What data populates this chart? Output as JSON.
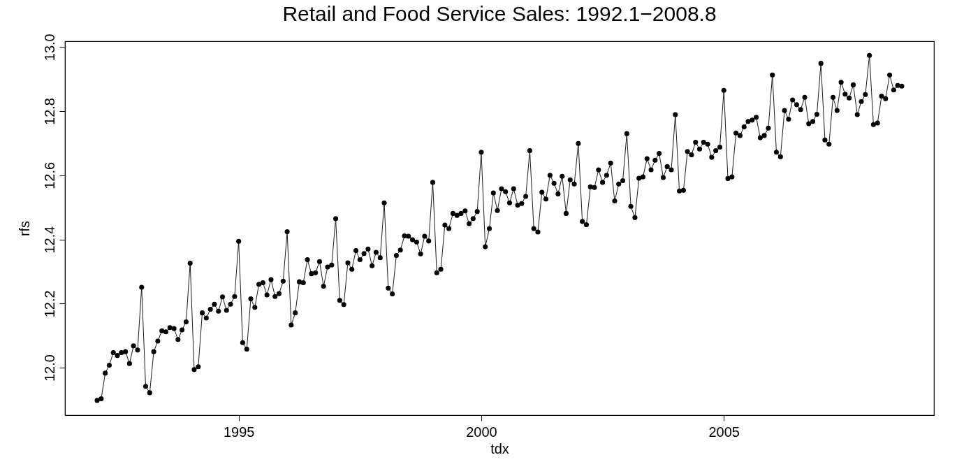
{
  "chart_data": {
    "type": "line",
    "title": "Retail and Food Service Sales: 1992.1−2008.8",
    "xlabel": "tdx",
    "ylabel": "rfs",
    "xlim": [
      1991.42,
      2009.33
    ],
    "xticks": [
      1995,
      2000,
      2005
    ],
    "ylim": [
      11.852,
      13.018
    ],
    "yticks": [
      {
        "value": 12,
        "label": "12.0"
      },
      12.2,
      12.4,
      12.6,
      12.8,
      {
        "value": 13,
        "label": "13.0"
      }
    ],
    "grid": false,
    "legend": false,
    "marker": "circle",
    "x": [
      1992.083,
      1992.167,
      1992.25,
      1992.333,
      1992.417,
      1992.5,
      1992.583,
      1992.667,
      1992.75,
      1992.833,
      1992.917,
      1993.0,
      1993.083,
      1993.167,
      1993.25,
      1993.333,
      1993.417,
      1993.5,
      1993.583,
      1993.667,
      1993.75,
      1993.833,
      1993.917,
      1994.0,
      1994.083,
      1994.167,
      1994.25,
      1994.333,
      1994.417,
      1994.5,
      1994.583,
      1994.667,
      1994.75,
      1994.833,
      1994.917,
      1995.0,
      1995.083,
      1995.167,
      1995.25,
      1995.333,
      1995.417,
      1995.5,
      1995.583,
      1995.667,
      1995.75,
      1995.833,
      1995.917,
      1996.0,
      1996.083,
      1996.167,
      1996.25,
      1996.333,
      1996.417,
      1996.5,
      1996.583,
      1996.667,
      1996.75,
      1996.833,
      1996.917,
      1997.0,
      1997.083,
      1997.167,
      1997.25,
      1997.333,
      1997.417,
      1997.5,
      1997.583,
      1997.667,
      1997.75,
      1997.833,
      1997.917,
      1998.0,
      1998.083,
      1998.167,
      1998.25,
      1998.333,
      1998.417,
      1998.5,
      1998.583,
      1998.667,
      1998.75,
      1998.833,
      1998.917,
      1999.0,
      1999.083,
      1999.167,
      1999.25,
      1999.333,
      1999.417,
      1999.5,
      1999.583,
      1999.667,
      1999.75,
      1999.833,
      1999.917,
      2000.0,
      2000.083,
      2000.167,
      2000.25,
      2000.333,
      2000.417,
      2000.5,
      2000.583,
      2000.667,
      2000.75,
      2000.833,
      2000.917,
      2001.0,
      2001.083,
      2001.167,
      2001.25,
      2001.333,
      2001.417,
      2001.5,
      2001.583,
      2001.667,
      2001.75,
      2001.833,
      2001.917,
      2002.0,
      2002.083,
      2002.167,
      2002.25,
      2002.333,
      2002.417,
      2002.5,
      2002.583,
      2002.667,
      2002.75,
      2002.833,
      2002.917,
      2003.0,
      2003.083,
      2003.167,
      2003.25,
      2003.333,
      2003.417,
      2003.5,
      2003.583,
      2003.667,
      2003.75,
      2003.833,
      2003.917,
      2004.0,
      2004.083,
      2004.167,
      2004.25,
      2004.333,
      2004.417,
      2004.5,
      2004.583,
      2004.667,
      2004.75,
      2004.833,
      2004.917,
      2005.0,
      2005.083,
      2005.167,
      2005.25,
      2005.333,
      2005.417,
      2005.5,
      2005.583,
      2005.667,
      2005.75,
      2005.833,
      2005.917,
      2006.0,
      2006.083,
      2006.167,
      2006.25,
      2006.333,
      2006.417,
      2006.5,
      2006.583,
      2006.667,
      2006.75,
      2006.833,
      2006.917,
      2007.0,
      2007.083,
      2007.167,
      2007.25,
      2007.333,
      2007.417,
      2007.5,
      2007.583,
      2007.667,
      2007.75,
      2007.833,
      2007.917,
      2008.0,
      2008.083,
      2008.167,
      2008.25,
      2008.333,
      2008.417,
      2008.5,
      2008.583,
      2008.667
    ],
    "series": [
      {
        "color": "#000000",
        "values": [
          11.898,
          11.903,
          11.983,
          12.008,
          12.047,
          12.038,
          12.047,
          12.05,
          12.013,
          12.068,
          12.055,
          12.251,
          11.942,
          11.922,
          12.05,
          12.083,
          12.115,
          12.112,
          12.125,
          12.122,
          12.088,
          12.118,
          12.143,
          12.326,
          11.994,
          12.003,
          12.171,
          12.155,
          12.182,
          12.198,
          12.176,
          12.221,
          12.179,
          12.198,
          12.222,
          12.394,
          12.078,
          12.058,
          12.215,
          12.188,
          12.26,
          12.265,
          12.227,
          12.275,
          12.222,
          12.231,
          12.27,
          12.424,
          12.133,
          12.171,
          12.268,
          12.265,
          12.337,
          12.293,
          12.296,
          12.331,
          12.254,
          12.314,
          12.32,
          12.465,
          12.21,
          12.197,
          12.327,
          12.307,
          12.365,
          12.337,
          12.356,
          12.37,
          12.318,
          12.36,
          12.343,
          12.514,
          12.248,
          12.23,
          12.35,
          12.367,
          12.411,
          12.41,
          12.399,
          12.392,
          12.355,
          12.41,
          12.395,
          12.578,
          12.296,
          12.307,
          12.445,
          12.434,
          12.481,
          12.475,
          12.481,
          12.489,
          12.449,
          12.465,
          12.487,
          12.672,
          12.377,
          12.434,
          12.545,
          12.49,
          12.558,
          12.549,
          12.514,
          12.558,
          12.507,
          12.512,
          12.534,
          12.677,
          12.434,
          12.423,
          12.547,
          12.526,
          12.6,
          12.575,
          12.542,
          12.597,
          12.481,
          12.586,
          12.573,
          12.699,
          12.456,
          12.446,
          12.564,
          12.562,
          12.617,
          12.578,
          12.6,
          12.638,
          12.52,
          12.573,
          12.583,
          12.73,
          12.503,
          12.468,
          12.591,
          12.595,
          12.652,
          12.617,
          12.647,
          12.668,
          12.593,
          12.627,
          12.617,
          12.789,
          12.551,
          12.553,
          12.674,
          12.664,
          12.703,
          12.682,
          12.703,
          12.697,
          12.656,
          12.677,
          12.688,
          12.865,
          12.59,
          12.595,
          12.732,
          12.724,
          12.751,
          12.768,
          12.772,
          12.781,
          12.717,
          12.724,
          12.747,
          12.913,
          12.672,
          12.658,
          12.802,
          12.775,
          12.835,
          12.82,
          12.805,
          12.843,
          12.761,
          12.768,
          12.79,
          12.949,
          12.71,
          12.697,
          12.843,
          12.802,
          12.89,
          12.853,
          12.841,
          12.882,
          12.789,
          12.83,
          12.852,
          12.974,
          12.758,
          12.763,
          12.847,
          12.839,
          12.913,
          12.866,
          12.88,
          12.878
        ]
      }
    ]
  }
}
